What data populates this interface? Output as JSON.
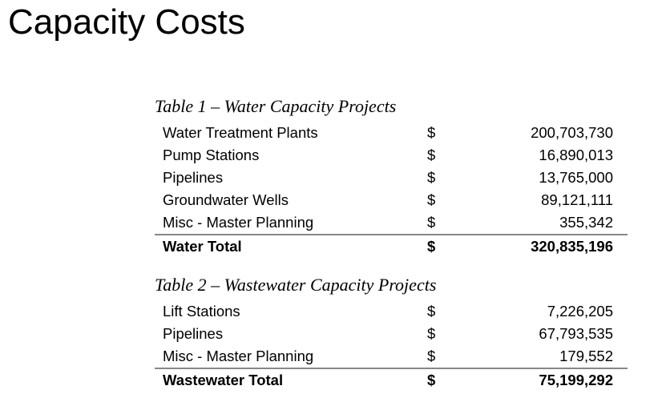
{
  "title": "Capacity Costs",
  "table1": {
    "caption": "Table 1 – Water Capacity Projects",
    "rows": [
      {
        "label": "Water Treatment Plants",
        "currency": "$",
        "value": "200,703,730"
      },
      {
        "label": "Pump Stations",
        "currency": "$",
        "value": "16,890,013"
      },
      {
        "label": "Pipelines",
        "currency": "$",
        "value": "13,765,000"
      },
      {
        "label": "Groundwater Wells",
        "currency": "$",
        "value": "89,121,111"
      },
      {
        "label": "Misc - Master Planning",
        "currency": "$",
        "value": "355,342"
      }
    ],
    "total": {
      "label": "Water Total",
      "currency": "$",
      "value": "320,835,196"
    }
  },
  "table2": {
    "caption": "Table 2 – Wastewater Capacity Projects",
    "rows": [
      {
        "label": "Lift Stations",
        "currency": "$",
        "value": "7,226,205"
      },
      {
        "label": "Pipelines",
        "currency": "$",
        "value": "67,793,535"
      },
      {
        "label": "Misc - Master Planning",
        "currency": "$",
        "value": "179,552"
      }
    ],
    "total": {
      "label": "Wastewater Total",
      "currency": "$",
      "value": "75,199,292"
    }
  }
}
